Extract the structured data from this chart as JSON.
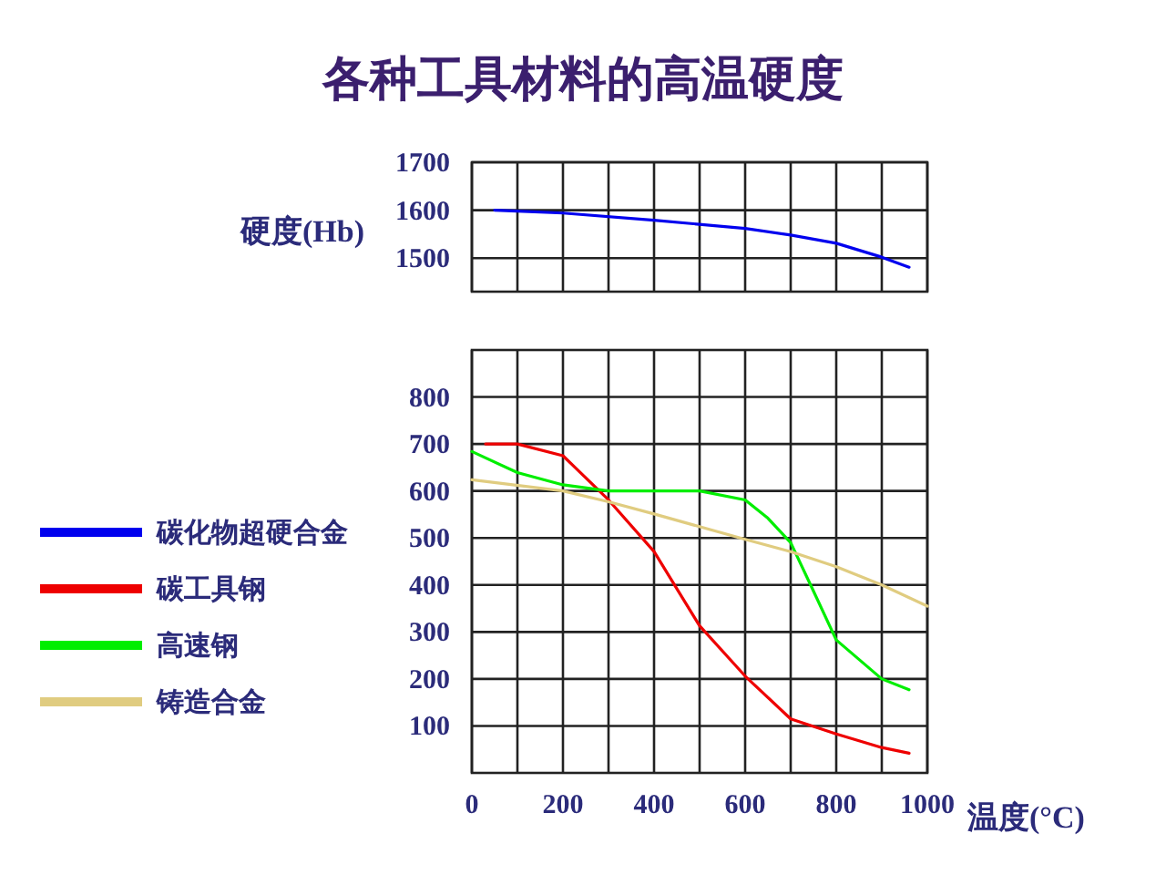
{
  "chart_data": [
    {
      "type": "line",
      "title": "各种工具材料的高温硬度",
      "ylabel": "硬度(Hb)",
      "xlim": [
        0,
        1000
      ],
      "xticks": [
        {
          "value": 0,
          "label": null
        },
        {
          "value": 100,
          "label": null
        },
        {
          "value": 200,
          "label": null
        },
        {
          "value": 300,
          "label": null
        },
        {
          "value": 400,
          "label": null
        },
        {
          "value": 500,
          "label": null
        },
        {
          "value": 600,
          "label": null
        },
        {
          "value": 700,
          "label": null
        },
        {
          "value": 800,
          "label": null
        },
        {
          "value": 900,
          "label": null
        },
        {
          "value": 1000,
          "label": null
        }
      ],
      "ylim": [
        1430,
        1700
      ],
      "yticks": [
        1500,
        1600,
        1700
      ],
      "tick_labels": "y",
      "grid": true,
      "legend": "left",
      "series": [
        {
          "name": "碳化物超硬合金",
          "color": "#0000ee",
          "x": [
            50,
            100,
            200,
            400,
            600,
            700,
            800,
            900,
            960
          ],
          "values": [
            1600,
            1598,
            1594,
            1579,
            1562,
            1548,
            1531,
            1502,
            1481
          ]
        }
      ]
    },
    {
      "type": "line",
      "xlabel": "温度(°C)",
      "xlim": [
        0,
        1000
      ],
      "xticks": [
        0,
        {
          "value": 100,
          "label": null
        },
        200,
        {
          "value": 300,
          "label": null
        },
        400,
        {
          "value": 500,
          "label": null
        },
        600,
        {
          "value": 700,
          "label": null
        },
        800,
        {
          "value": 900,
          "label": null
        },
        1000
      ],
      "ylim": [
        0,
        900
      ],
      "yticks": [
        100,
        200,
        300,
        400,
        500,
        600,
        700,
        800
      ],
      "grid": true,
      "legend": "left",
      "series": [
        {
          "name": "碳工具钢",
          "color": "#ee0000",
          "x": [
            30,
            100,
            200,
            300,
            400,
            500,
            600,
            700,
            800,
            900,
            960
          ],
          "values": [
            700,
            700,
            675,
            581,
            471,
            313,
            206,
            115,
            83,
            54,
            42
          ]
        },
        {
          "name": "高速钢",
          "color": "#00ee00",
          "x": [
            0,
            100,
            200,
            300,
            500,
            600,
            650,
            700,
            750,
            800,
            900,
            960
          ],
          "values": [
            684,
            639,
            613,
            600,
            600,
            581,
            542,
            490,
            387,
            283,
            200,
            177
          ]
        },
        {
          "name": "铸造合金",
          "color": "#e0cc80",
          "x": [
            0,
            200,
            300,
            400,
            600,
            700,
            800,
            900,
            1000
          ],
          "values": [
            624,
            600,
            577,
            551,
            497,
            471,
            439,
            400,
            355
          ]
        }
      ]
    }
  ]
}
